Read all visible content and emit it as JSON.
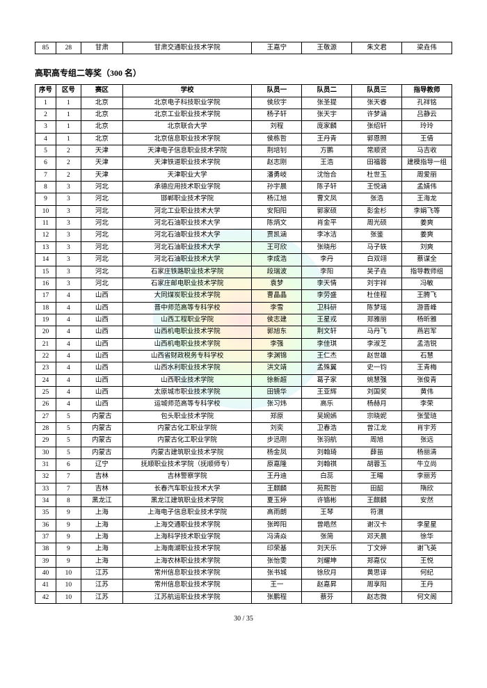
{
  "topRow": {
    "seq": "85",
    "zone": "28",
    "area": "甘肃",
    "school": "甘肃交通职业技术学院",
    "p1": "王嘉宁",
    "p2": "王敬源",
    "p3": "朱文君",
    "teacher": "梁垚伟"
  },
  "sectionTitle": "高职高专组二等奖（300 名）",
  "headers": {
    "seq": "序号",
    "zone": "区号",
    "area": "赛区",
    "school": "学校",
    "p1": "队员一",
    "p2": "队员二",
    "p3": "队员三",
    "teacher": "指导教师"
  },
  "rows": [
    {
      "seq": "1",
      "zone": "1",
      "area": "北京",
      "school": "北京电子科技职业学院",
      "p1": "侯欣宇",
      "p2": "张圣提",
      "p3": "张天睿",
      "teacher": "孔祥铭"
    },
    {
      "seq": "2",
      "zone": "1",
      "area": "北京",
      "school": "北京工业职业技术学院",
      "p1": "杨子轩",
      "p2": "张天宇",
      "p3": "许梦涵",
      "teacher": "吕静云"
    },
    {
      "seq": "3",
      "zone": "1",
      "area": "北京",
      "school": "北京联合大学",
      "p1": "刘程",
      "p2": "庞家麟",
      "p3": "张绍轩",
      "teacher": "玲玲"
    },
    {
      "seq": "4",
      "zone": "1",
      "area": "北京",
      "school": "北京信息职业技术学院",
      "p1": "侯栋哲",
      "p2": "王丹青",
      "p3": "郭恩照",
      "teacher": "王倩"
    },
    {
      "seq": "5",
      "zone": "2",
      "area": "天津",
      "school": "天津电子信息职业技术学院",
      "p1": "荆培钊",
      "p2": "方鹏",
      "p3": "常顺贤",
      "teacher": "马吉收"
    },
    {
      "seq": "6",
      "zone": "2",
      "area": "天津",
      "school": "天津铁道职业技术学院",
      "p1": "赵志刚",
      "p2": "王浩",
      "p3": "田福蓉",
      "teacher": "建模指导一组"
    },
    {
      "seq": "7",
      "zone": "2",
      "area": "天津",
      "school": "天津职业大学",
      "p1": "潘勇岐",
      "p2": "沈怡合",
      "p3": "杜世玉",
      "teacher": "周爱丽"
    },
    {
      "seq": "8",
      "zone": "3",
      "area": "河北",
      "school": "承德应用技术职业学院",
      "p1": "孙宇晨",
      "p2": "陈子轩",
      "p3": "王悦涵",
      "teacher": "孟婧伟"
    },
    {
      "seq": "9",
      "zone": "3",
      "area": "河北",
      "school": "邯郸职业技术学院",
      "p1": "杨江旭",
      "p2": "曹文凤",
      "p3": "张浩",
      "teacher": "王海龙"
    },
    {
      "seq": "10",
      "zone": "3",
      "area": "河北",
      "school": "河北工业职业技术大学",
      "p1": "安阳阳",
      "p2": "郭家硕",
      "p3": "彭金杉",
      "teacher": "李娟飞等"
    },
    {
      "seq": "11",
      "zone": "3",
      "area": "河北",
      "school": "河北石油职业技术大学",
      "p1": "陈炳文",
      "p2": "肖金平",
      "p3": "周光硕",
      "teacher": "姜爽"
    },
    {
      "seq": "12",
      "zone": "3",
      "area": "河北",
      "school": "河北石油职业技术大学",
      "p1": "贾凯涵",
      "p2": "李冰洁",
      "p3": "张鉴",
      "teacher": "姜爽"
    },
    {
      "seq": "13",
      "zone": "3",
      "area": "河北",
      "school": "河北石油职业技术大学",
      "p1": "王可欣",
      "p2": "张晓彤",
      "p3": "马子轶",
      "teacher": "刘爽"
    },
    {
      "seq": "14",
      "zone": "3",
      "area": "河北",
      "school": "河北石油职业技术大学",
      "p1": "李成浩",
      "p2": "李丹",
      "p3": "白双翊",
      "teacher": "蔡谋全"
    },
    {
      "seq": "15",
      "zone": "3",
      "area": "河北",
      "school": "石家庄铁路职业技术学院",
      "p1": "段瑞波",
      "p2": "李阳",
      "p3": "吴子垚",
      "teacher": "指导教师组"
    },
    {
      "seq": "16",
      "zone": "3",
      "area": "河北",
      "school": "石家庄邮电职业技术学院",
      "p1": "袁梦",
      "p2": "李天情",
      "p3": "刘宇祥",
      "teacher": "冯敏"
    },
    {
      "seq": "17",
      "zone": "4",
      "area": "山西",
      "school": "大同煤炭职业技术学院",
      "p1": "曹晶晶",
      "p2": "李劳盛",
      "p3": "杜佳程",
      "teacher": "王腾飞"
    },
    {
      "seq": "18",
      "zone": "4",
      "area": "山西",
      "school": "晋中师范高等专科学校",
      "p1": "李雪",
      "p2": "卫科研",
      "p3": "陈梦瑶",
      "teacher": "游晋峰"
    },
    {
      "seq": "19",
      "zone": "4",
      "area": "山西",
      "school": "山西工程职业学院",
      "p1": "侯志建",
      "p2": "王星戎",
      "p3": "郑雅丽",
      "teacher": "杨昕雅"
    },
    {
      "seq": "20",
      "zone": "4",
      "area": "山西",
      "school": "山西机电职业技术学院",
      "p1": "郭旭东",
      "p2": "荆文轩",
      "p3": "马丹飞",
      "teacher": "燕岩军"
    },
    {
      "seq": "21",
      "zone": "4",
      "area": "山西",
      "school": "山西机电职业技术学院",
      "p1": "李强",
      "p2": "李佳琪",
      "p3": "李淑芝",
      "teacher": "孟浩锐"
    },
    {
      "seq": "22",
      "zone": "4",
      "area": "山西",
      "school": "山西省财政税务专科学校",
      "p1": "李渊锦",
      "p2": "王仁杰",
      "p3": "赵世雄",
      "teacher": "石慧"
    },
    {
      "seq": "23",
      "zone": "4",
      "area": "山西",
      "school": "山西水利职业技术学院",
      "p1": "洪文靖",
      "p2": "孟殊翼",
      "p3": "史一钧",
      "teacher": "王青梅"
    },
    {
      "seq": "24",
      "zone": "4",
      "area": "山西",
      "school": "山西职业技术学院",
      "p1": "徐新超",
      "p2": "葛子家",
      "p3": "姚慧强",
      "teacher": "张俊青"
    },
    {
      "seq": "25",
      "zone": "4",
      "area": "山西",
      "school": "太原城市职业技术学院",
      "p1": "田镜华",
      "p2": "王亚辉",
      "p3": "刘国奖",
      "teacher": "黄伟"
    },
    {
      "seq": "26",
      "zone": "4",
      "area": "山西",
      "school": "运城师范高等专科学校",
      "p1": "张习炜",
      "p2": "高乐",
      "p3": "杨赫月",
      "teacher": "李荣"
    },
    {
      "seq": "27",
      "zone": "5",
      "area": "内蒙古",
      "school": "包头职业技术学院",
      "p1": "郑原",
      "p2": "吴婉嫣",
      "p3": "宗晓妮",
      "teacher": "张莹琏"
    },
    {
      "seq": "28",
      "zone": "5",
      "area": "内蒙古",
      "school": "内蒙古化工职业学院",
      "p1": "刘奕",
      "p2": "卫春浩",
      "p3": "曾江龙",
      "teacher": "肖宇芳"
    },
    {
      "seq": "29",
      "zone": "5",
      "area": "内蒙古",
      "school": "内蒙古化工职业学院",
      "p1": "步迅刚",
      "p2": "张羽航",
      "p3": "周旭",
      "teacher": "张远"
    },
    {
      "seq": "30",
      "zone": "5",
      "area": "内蒙古",
      "school": "内蒙古建筑职业技术学院",
      "p1": "杨金凤",
      "p2": "刘翰琦",
      "p3": "薛苗",
      "teacher": "杨丽清"
    },
    {
      "seq": "31",
      "zone": "6",
      "area": "辽宁",
      "school": "抚顺职业技术学院（抚顺师专）",
      "p1": "原嘉隆",
      "p2": "刘翰祺",
      "p3": "胡蓉玉",
      "teacher": "牛立尚"
    },
    {
      "seq": "32",
      "zone": "7",
      "area": "吉林",
      "school": "吉林警察学院",
      "p1": "王丹迪",
      "p2": "白蕊",
      "p3": "王暘",
      "teacher": "李丽芳"
    },
    {
      "seq": "33",
      "zone": "7",
      "area": "吉林",
      "school": "长春汽车职业技术大学",
      "p1": "王麒麟",
      "p2": "苑熙哲",
      "p3": "田韶",
      "teacher": "隋欣"
    },
    {
      "seq": "34",
      "zone": "8",
      "area": "黑龙江",
      "school": "黑龙江建筑职业技术学院",
      "p1": "夏玉婷",
      "p2": "许铬彬",
      "p3": "王麒麟",
      "teacher": "安然"
    },
    {
      "seq": "35",
      "zone": "9",
      "area": "上海",
      "school": "上海电子信息职业技术学院",
      "p1": "高雨朗",
      "p2": "王琴",
      "p3": "符濽",
      "teacher": ""
    },
    {
      "seq": "36",
      "zone": "9",
      "area": "上海",
      "school": "上海交通职业技术学院",
      "p1": "张晔阳",
      "p2": "曾皓然",
      "p3": "谢汉卡",
      "teacher": "李星星"
    },
    {
      "seq": "37",
      "zone": "9",
      "area": "上海",
      "school": "上海科学技术职业学院",
      "p1": "冯清焱",
      "p2": "张简",
      "p3": "邓天晨",
      "teacher": "徐华"
    },
    {
      "seq": "38",
      "zone": "9",
      "area": "上海",
      "school": "上海南湖职业技术学院",
      "p1": "印荣基",
      "p2": "刘天乐",
      "p3": "丁文婷",
      "teacher": "谢飞英"
    },
    {
      "seq": "39",
      "zone": "9",
      "area": "上海",
      "school": "上海农林职业技术学院",
      "p1": "张怡雯",
      "p2": "刘耀坤",
      "p3": "郑嘉仪",
      "teacher": "王悦"
    },
    {
      "seq": "40",
      "zone": "10",
      "area": "江苏",
      "school": "常州信息职业技术学院",
      "p1": "张书城",
      "p2": "徐欣月",
      "p3": "黄思译",
      "teacher": "何纪"
    },
    {
      "seq": "41",
      "zone": "10",
      "area": "江苏",
      "school": "常州信息职业技术学院",
      "p1": "王一",
      "p2": "赵嘉昇",
      "p3": "周享阳",
      "teacher": "王丹"
    },
    {
      "seq": "42",
      "zone": "10",
      "area": "江苏",
      "school": "江苏航运职业技术学院",
      "p1": "张鹏程",
      "p2": "蔡芬",
      "p3": "赵志微",
      "teacher": "何文阁"
    }
  ],
  "pageNumber": "30 / 35"
}
